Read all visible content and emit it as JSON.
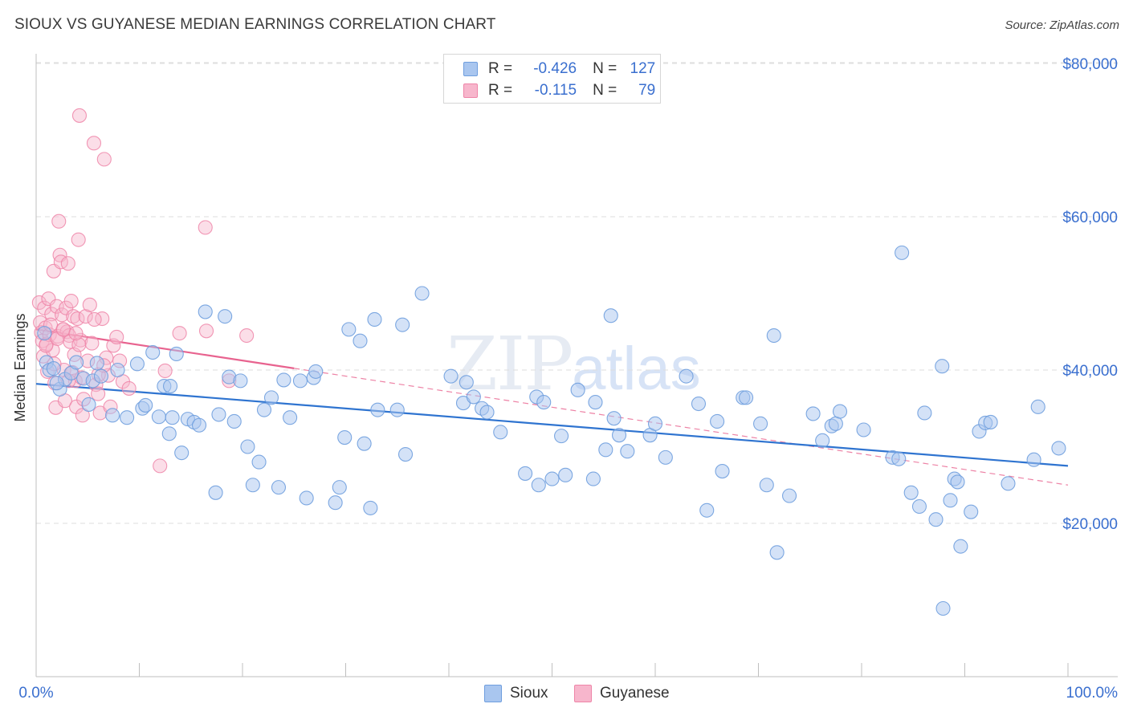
{
  "title": "SIOUX VS GUYANESE MEDIAN EARNINGS CORRELATION CHART",
  "source": "Source: ZipAtlas.com",
  "watermark": {
    "zip": "ZIP",
    "atlas": "atlas"
  },
  "legend": {
    "rows": [
      {
        "r_label": "R =",
        "r_value": "-0.426",
        "n_label": "N =",
        "n_value": "127"
      },
      {
        "r_label": "R =",
        "r_value": "-0.115",
        "n_label": "N =",
        "n_value": "79"
      }
    ]
  },
  "bottom_legend": [
    "Sioux",
    "Guyanese"
  ],
  "colors": {
    "sioux_fill": "#a9c6ef",
    "sioux_stroke": "#6f9ede",
    "sioux_line": "#2f74d0",
    "guy_fill": "#f7b6cc",
    "guy_stroke": "#ee85a8",
    "guy_line": "#e8638f",
    "axis_label": "#3a6fcf",
    "grid": "#dedede"
  },
  "chart_data": {
    "type": "scatter",
    "title": "SIOUX VS GUYANESE MEDIAN EARNINGS CORRELATION CHART",
    "xlabel": "",
    "ylabel": "Median Earnings",
    "xlim": [
      0,
      100
    ],
    "ylim": [
      0,
      84000
    ],
    "x_tick_labels": [
      "0.0%",
      "100.0%"
    ],
    "y_ticks": [
      20000,
      40000,
      60000,
      80000
    ],
    "y_tick_labels": [
      "$20,000",
      "$40,000",
      "$60,000",
      "$80,000"
    ],
    "legend_position": "top-center",
    "series": [
      {
        "name": "Sioux",
        "r": -0.426,
        "n": 127,
        "trend": {
          "x0": 0,
          "y0": 38200,
          "x1": 100,
          "y1": 27500
        },
        "points": [
          [
            0.8,
            44800
          ],
          [
            1.0,
            41000
          ],
          [
            1.3,
            40000
          ],
          [
            1.7,
            40200
          ],
          [
            2.3,
            37500
          ],
          [
            2.8,
            38800
          ],
          [
            3.4,
            39600
          ],
          [
            3.9,
            41000
          ],
          [
            4.6,
            38900
          ],
          [
            5.1,
            35500
          ],
          [
            5.5,
            38600
          ],
          [
            5.9,
            40900
          ],
          [
            6.3,
            39200
          ],
          [
            7.4,
            34100
          ],
          [
            7.9,
            40000
          ],
          [
            8.8,
            33800
          ],
          [
            9.8,
            40800
          ],
          [
            10.3,
            35000
          ],
          [
            10.6,
            35400
          ],
          [
            11.3,
            42300
          ],
          [
            11.9,
            33900
          ],
          [
            12.4,
            37900
          ],
          [
            12.9,
            31700
          ],
          [
            13.2,
            33800
          ],
          [
            13.6,
            42100
          ],
          [
            14.1,
            29200
          ],
          [
            14.7,
            33600
          ],
          [
            15.3,
            33200
          ],
          [
            15.8,
            32800
          ],
          [
            16.4,
            47600
          ],
          [
            17.4,
            24000
          ],
          [
            17.7,
            34200
          ],
          [
            18.3,
            47000
          ],
          [
            18.7,
            39100
          ],
          [
            19.2,
            33300
          ],
          [
            19.8,
            38600
          ],
          [
            20.5,
            30000
          ],
          [
            21.0,
            25000
          ],
          [
            21.6,
            28000
          ],
          [
            22.1,
            34800
          ],
          [
            22.8,
            36400
          ],
          [
            23.5,
            24700
          ],
          [
            24.0,
            38700
          ],
          [
            24.6,
            33800
          ],
          [
            25.6,
            38600
          ],
          [
            26.2,
            23300
          ],
          [
            26.9,
            39000
          ],
          [
            27.1,
            39800
          ],
          [
            29.0,
            22700
          ],
          [
            29.4,
            24700
          ],
          [
            29.9,
            31200
          ],
          [
            30.3,
            45300
          ],
          [
            31.4,
            43800
          ],
          [
            31.8,
            30400
          ],
          [
            32.4,
            22000
          ],
          [
            32.8,
            46600
          ],
          [
            33.1,
            34800
          ],
          [
            35.0,
            34800
          ],
          [
            35.5,
            45900
          ],
          [
            35.8,
            29000
          ],
          [
            37.4,
            50000
          ],
          [
            40.2,
            39200
          ],
          [
            41.4,
            35700
          ],
          [
            41.7,
            38400
          ],
          [
            42.4,
            36500
          ],
          [
            43.2,
            35000
          ],
          [
            43.7,
            34500
          ],
          [
            45.0,
            31900
          ],
          [
            47.4,
            26500
          ],
          [
            48.5,
            36500
          ],
          [
            48.7,
            25000
          ],
          [
            49.2,
            35800
          ],
          [
            50.0,
            25800
          ],
          [
            50.9,
            31400
          ],
          [
            51.3,
            26300
          ],
          [
            52.5,
            37400
          ],
          [
            54.0,
            25800
          ],
          [
            54.2,
            35800
          ],
          [
            55.2,
            29600
          ],
          [
            55.7,
            47100
          ],
          [
            56.0,
            33700
          ],
          [
            57.3,
            29400
          ],
          [
            59.5,
            31500
          ],
          [
            60.0,
            33000
          ],
          [
            61.0,
            28600
          ],
          [
            63.0,
            39200
          ],
          [
            64.2,
            35600
          ],
          [
            65.0,
            21700
          ],
          [
            66.0,
            33300
          ],
          [
            66.5,
            26800
          ],
          [
            68.5,
            36400
          ],
          [
            68.8,
            36400
          ],
          [
            70.2,
            33000
          ],
          [
            70.8,
            25000
          ],
          [
            71.5,
            44500
          ],
          [
            71.8,
            16200
          ],
          [
            73.0,
            23600
          ],
          [
            75.3,
            34300
          ],
          [
            76.2,
            30800
          ],
          [
            77.1,
            32700
          ],
          [
            77.5,
            33000
          ],
          [
            77.9,
            34600
          ],
          [
            80.2,
            32200
          ],
          [
            83.0,
            28600
          ],
          [
            83.6,
            28400
          ],
          [
            83.9,
            55300
          ],
          [
            84.8,
            24000
          ],
          [
            85.6,
            22200
          ],
          [
            86.1,
            34400
          ],
          [
            87.2,
            20500
          ],
          [
            87.8,
            40500
          ],
          [
            88.6,
            23000
          ],
          [
            89.0,
            25800
          ],
          [
            89.3,
            25400
          ],
          [
            89.6,
            17000
          ],
          [
            90.6,
            21500
          ],
          [
            91.4,
            32000
          ],
          [
            92.0,
            33100
          ],
          [
            92.5,
            33200
          ],
          [
            94.2,
            25200
          ],
          [
            96.7,
            28300
          ],
          [
            97.1,
            35200
          ],
          [
            99.1,
            29800
          ],
          [
            87.9,
            8900
          ],
          [
            56.5,
            31500
          ],
          [
            13.0,
            37900
          ],
          [
            2.0,
            38300
          ]
        ]
      },
      {
        "name": "Guyanese",
        "r": -0.115,
        "n": 79,
        "trend": {
          "x0": 0,
          "y0": 45300,
          "x1": 100,
          "y1": 25000,
          "solid_until_x": 25
        },
        "points": [
          [
            0.3,
            48800
          ],
          [
            0.4,
            46200
          ],
          [
            0.5,
            44900
          ],
          [
            0.6,
            43800
          ],
          [
            0.7,
            41800
          ],
          [
            0.8,
            48100
          ],
          [
            0.9,
            45500
          ],
          [
            1.0,
            43400
          ],
          [
            1.1,
            39800
          ],
          [
            1.2,
            49300
          ],
          [
            1.3,
            44600
          ],
          [
            1.5,
            47300
          ],
          [
            1.6,
            42600
          ],
          [
            1.7,
            52900
          ],
          [
            1.8,
            38300
          ],
          [
            1.9,
            35100
          ],
          [
            2.0,
            48300
          ],
          [
            2.1,
            44400
          ],
          [
            2.2,
            59400
          ],
          [
            2.3,
            55000
          ],
          [
            2.4,
            54100
          ],
          [
            2.5,
            47200
          ],
          [
            2.6,
            45300
          ],
          [
            2.7,
            40000
          ],
          [
            2.8,
            36000
          ],
          [
            2.9,
            48100
          ],
          [
            3.0,
            45000
          ],
          [
            3.1,
            53900
          ],
          [
            3.2,
            44500
          ],
          [
            3.3,
            43700
          ],
          [
            3.4,
            49000
          ],
          [
            3.5,
            39700
          ],
          [
            3.6,
            47000
          ],
          [
            3.7,
            42000
          ],
          [
            3.8,
            38600
          ],
          [
            3.9,
            35200
          ],
          [
            4.0,
            46700
          ],
          [
            4.1,
            57000
          ],
          [
            4.2,
            73200
          ],
          [
            4.3,
            43900
          ],
          [
            4.4,
            39000
          ],
          [
            4.5,
            34100
          ],
          [
            4.6,
            36200
          ],
          [
            4.8,
            47000
          ],
          [
            5.0,
            41200
          ],
          [
            5.2,
            48500
          ],
          [
            5.4,
            43500
          ],
          [
            5.6,
            69600
          ],
          [
            5.8,
            38100
          ],
          [
            6.0,
            36900
          ],
          [
            6.2,
            34400
          ],
          [
            6.4,
            46700
          ],
          [
            6.6,
            67500
          ],
          [
            6.8,
            41600
          ],
          [
            7.0,
            39300
          ],
          [
            7.2,
            35200
          ],
          [
            7.5,
            43200
          ],
          [
            7.8,
            44300
          ],
          [
            8.1,
            41200
          ],
          [
            8.4,
            38500
          ],
          [
            9.0,
            37600
          ],
          [
            12.0,
            27500
          ],
          [
            12.5,
            39900
          ],
          [
            13.9,
            44800
          ],
          [
            16.4,
            58600
          ],
          [
            16.5,
            45100
          ],
          [
            18.7,
            38600
          ],
          [
            20.4,
            44500
          ],
          [
            1.4,
            45900
          ],
          [
            2.05,
            44100
          ],
          [
            3.15,
            38600
          ],
          [
            4.15,
            43300
          ],
          [
            0.95,
            43200
          ],
          [
            1.75,
            40800
          ],
          [
            2.65,
            45300
          ],
          [
            3.85,
            44800
          ],
          [
            5.65,
            46600
          ],
          [
            6.05,
            39400
          ],
          [
            6.55,
            40600
          ]
        ]
      }
    ]
  }
}
